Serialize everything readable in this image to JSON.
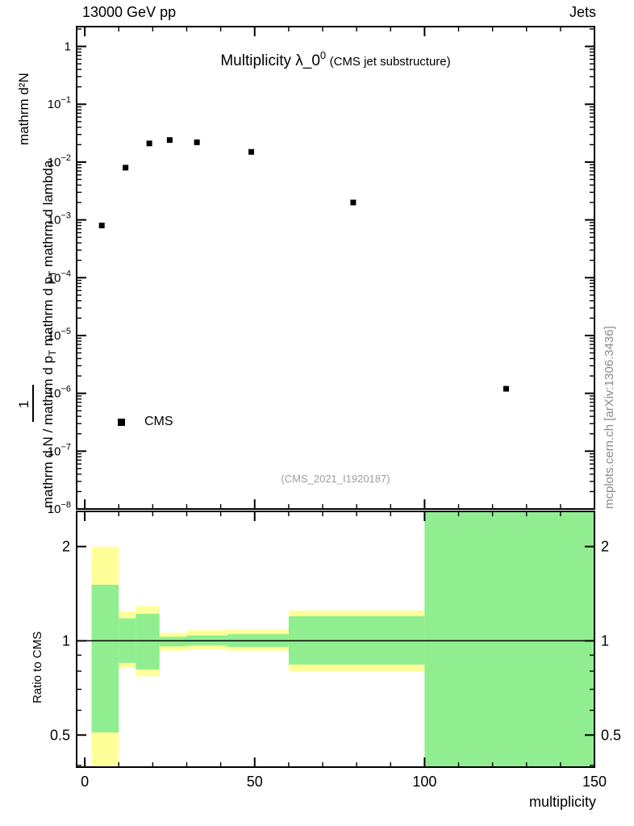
{
  "chart_data": {
    "type": "scatter",
    "header_left": "13000 GeV pp",
    "header_right": "Jets",
    "title": "Multiplicity λ_0",
    "title_sup": "0",
    "subtitle": "(CMS jet substructure)",
    "watermark": "(CMS_2021_I1920187)",
    "side_label": "mcplots.cern.ch [arXiv:1306.3436]",
    "xlabel": "multiplicity",
    "ratio_ylabel": "Ratio to CMS",
    "legend": {
      "label": "CMS",
      "marker": "filled-black-square"
    },
    "ylabel": {
      "numerator": "mathrm d²N",
      "one": "1",
      "denom_parts": [
        "mathrm d N / mathrm d p",
        "T",
        " mathrm d p",
        "T",
        " mathrm d lambda"
      ]
    },
    "colors": {
      "band_yellow": "#ffff99",
      "band_green": "#90ee90",
      "marker": "#000000"
    },
    "main": {
      "yscale": "log",
      "xlim": [
        -2.4,
        150
      ],
      "ylim": [
        1e-08,
        2.2
      ],
      "yticks_exp": [
        0,
        -1,
        -2,
        -3,
        -4,
        -5,
        -6,
        -7,
        -8
      ],
      "points": [
        [
          5,
          0.0008
        ],
        [
          12,
          0.008
        ],
        [
          19,
          0.021
        ],
        [
          25,
          0.024
        ],
        [
          33,
          0.022
        ],
        [
          49,
          0.015
        ],
        [
          79,
          0.002
        ],
        [
          124,
          1.2e-06
        ]
      ]
    },
    "ratio": {
      "yscale": "log",
      "ylim": [
        0.395,
        2.59
      ],
      "ref_line": 1,
      "yticks": [
        {
          "v": 2,
          "label": "2"
        },
        {
          "v": 1,
          "label": "1"
        },
        {
          "v": 0.5,
          "label": "0.5"
        }
      ],
      "yminor": [
        0.4,
        0.6,
        0.7,
        0.8,
        0.9
      ],
      "xticks": [
        {
          "v": 0,
          "label": "0"
        },
        {
          "v": 50,
          "label": "50"
        },
        {
          "v": 100,
          "label": "100"
        },
        {
          "v": 150,
          "label": "150"
        }
      ],
      "xminor_step": 10,
      "bands": [
        {
          "x0": 2,
          "x1": 10,
          "yellow": [
            0.4,
            2.0
          ],
          "green": [
            0.51,
            1.51
          ]
        },
        {
          "x0": 10,
          "x1": 15,
          "yellow": [
            0.82,
            1.24
          ],
          "green": [
            0.85,
            1.18
          ]
        },
        {
          "x0": 15,
          "x1": 22,
          "yellow": [
            0.77,
            1.29
          ],
          "green": [
            0.81,
            1.22
          ]
        },
        {
          "x0": 22,
          "x1": 30,
          "yellow": [
            0.93,
            1.06
          ],
          "green": [
            0.96,
            1.03
          ]
        },
        {
          "x0": 30,
          "x1": 42,
          "yellow": [
            0.94,
            1.08
          ],
          "green": [
            0.965,
            1.04
          ]
        },
        {
          "x0": 42,
          "x1": 60,
          "yellow": [
            0.93,
            1.09
          ],
          "green": [
            0.955,
            1.05
          ]
        },
        {
          "x0": 60,
          "x1": 100,
          "yellow": [
            0.8,
            1.25
          ],
          "green": [
            0.84,
            1.2
          ]
        },
        {
          "x0": 100,
          "x1": 150,
          "yellow": [
            0.395,
            2.59
          ],
          "green": [
            0.395,
            2.59
          ]
        }
      ]
    }
  }
}
